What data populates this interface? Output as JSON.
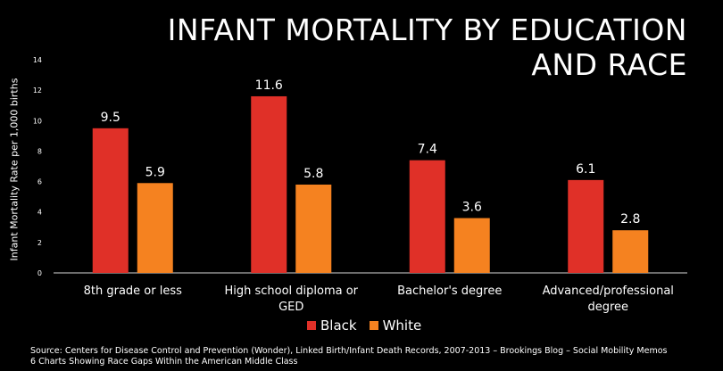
{
  "title_line1": "INFANT MORTALITY BY EDUCATION",
  "title_line2": "AND RACE",
  "colors": {
    "black": "#e03028",
    "white": "#f58220",
    "axis": "#d9d9d9"
  },
  "chart_data": {
    "type": "bar",
    "title": "INFANT MORTALITY BY EDUCATION AND RACE",
    "ylabel": "Infant Mortality Rate per 1,000 births",
    "xlabel": "",
    "ylim": [
      0,
      14
    ],
    "yticks": [
      "0",
      "2",
      "4",
      "6",
      "8",
      "10",
      "12",
      "14"
    ],
    "grid": false,
    "legend_position": "bottom",
    "categories": [
      [
        "8th grade or less"
      ],
      [
        "High school diploma or",
        "GED"
      ],
      [
        "Bachelor's degree"
      ],
      [
        "Advanced/professional",
        "degree"
      ]
    ],
    "series": [
      {
        "name": "Black",
        "values": [
          9.5,
          11.6,
          7.4,
          6.1
        ]
      },
      {
        "name": "White",
        "values": [
          5.9,
          5.8,
          3.6,
          2.8
        ]
      }
    ]
  },
  "legend": {
    "black_label": "Black",
    "white_label": "White"
  },
  "source_line1": "Source:  Centers for Disease Control and Prevention (Wonder), Linked Birth/Infant Death Records, 2007-2013 – Brookings Blog – Social Mobility Memos",
  "source_line2": "6 Charts Showing Race Gaps Within the American Middle Class"
}
